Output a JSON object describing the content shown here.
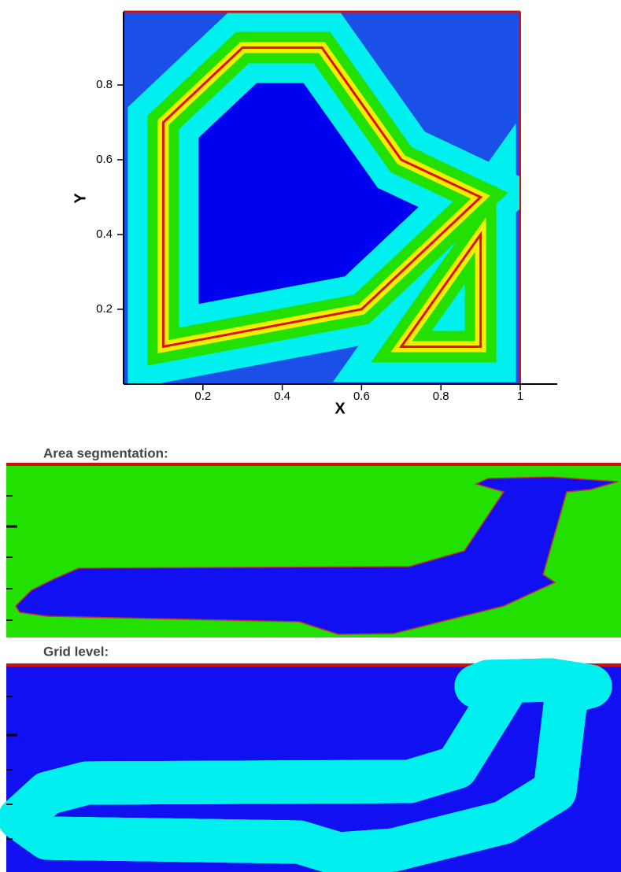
{
  "chart_data": {
    "type": "contour",
    "xlabel": "X",
    "ylabel": "Y",
    "xlim": [
      0,
      1
    ],
    "ylim": [
      0,
      1
    ],
    "xticks": [
      0.2,
      0.4,
      0.6,
      0.8,
      1
    ],
    "yticks": [
      0.2,
      0.4,
      0.6,
      0.8
    ],
    "polygons": [
      {
        "x": [
          0.1,
          0.1,
          0.3,
          0.5,
          0.7,
          0.9,
          0.6
        ],
        "y": [
          0.1,
          0.7,
          0.9,
          0.9,
          0.6,
          0.5,
          0.2
        ]
      },
      {
        "x": [
          0.7,
          0.9,
          0.9
        ],
        "y": [
          0.1,
          0.4,
          0.1
        ]
      }
    ]
  },
  "panels": [
    {
      "title": "Area segmentation:"
    },
    {
      "title": "Grid level:"
    }
  ]
}
